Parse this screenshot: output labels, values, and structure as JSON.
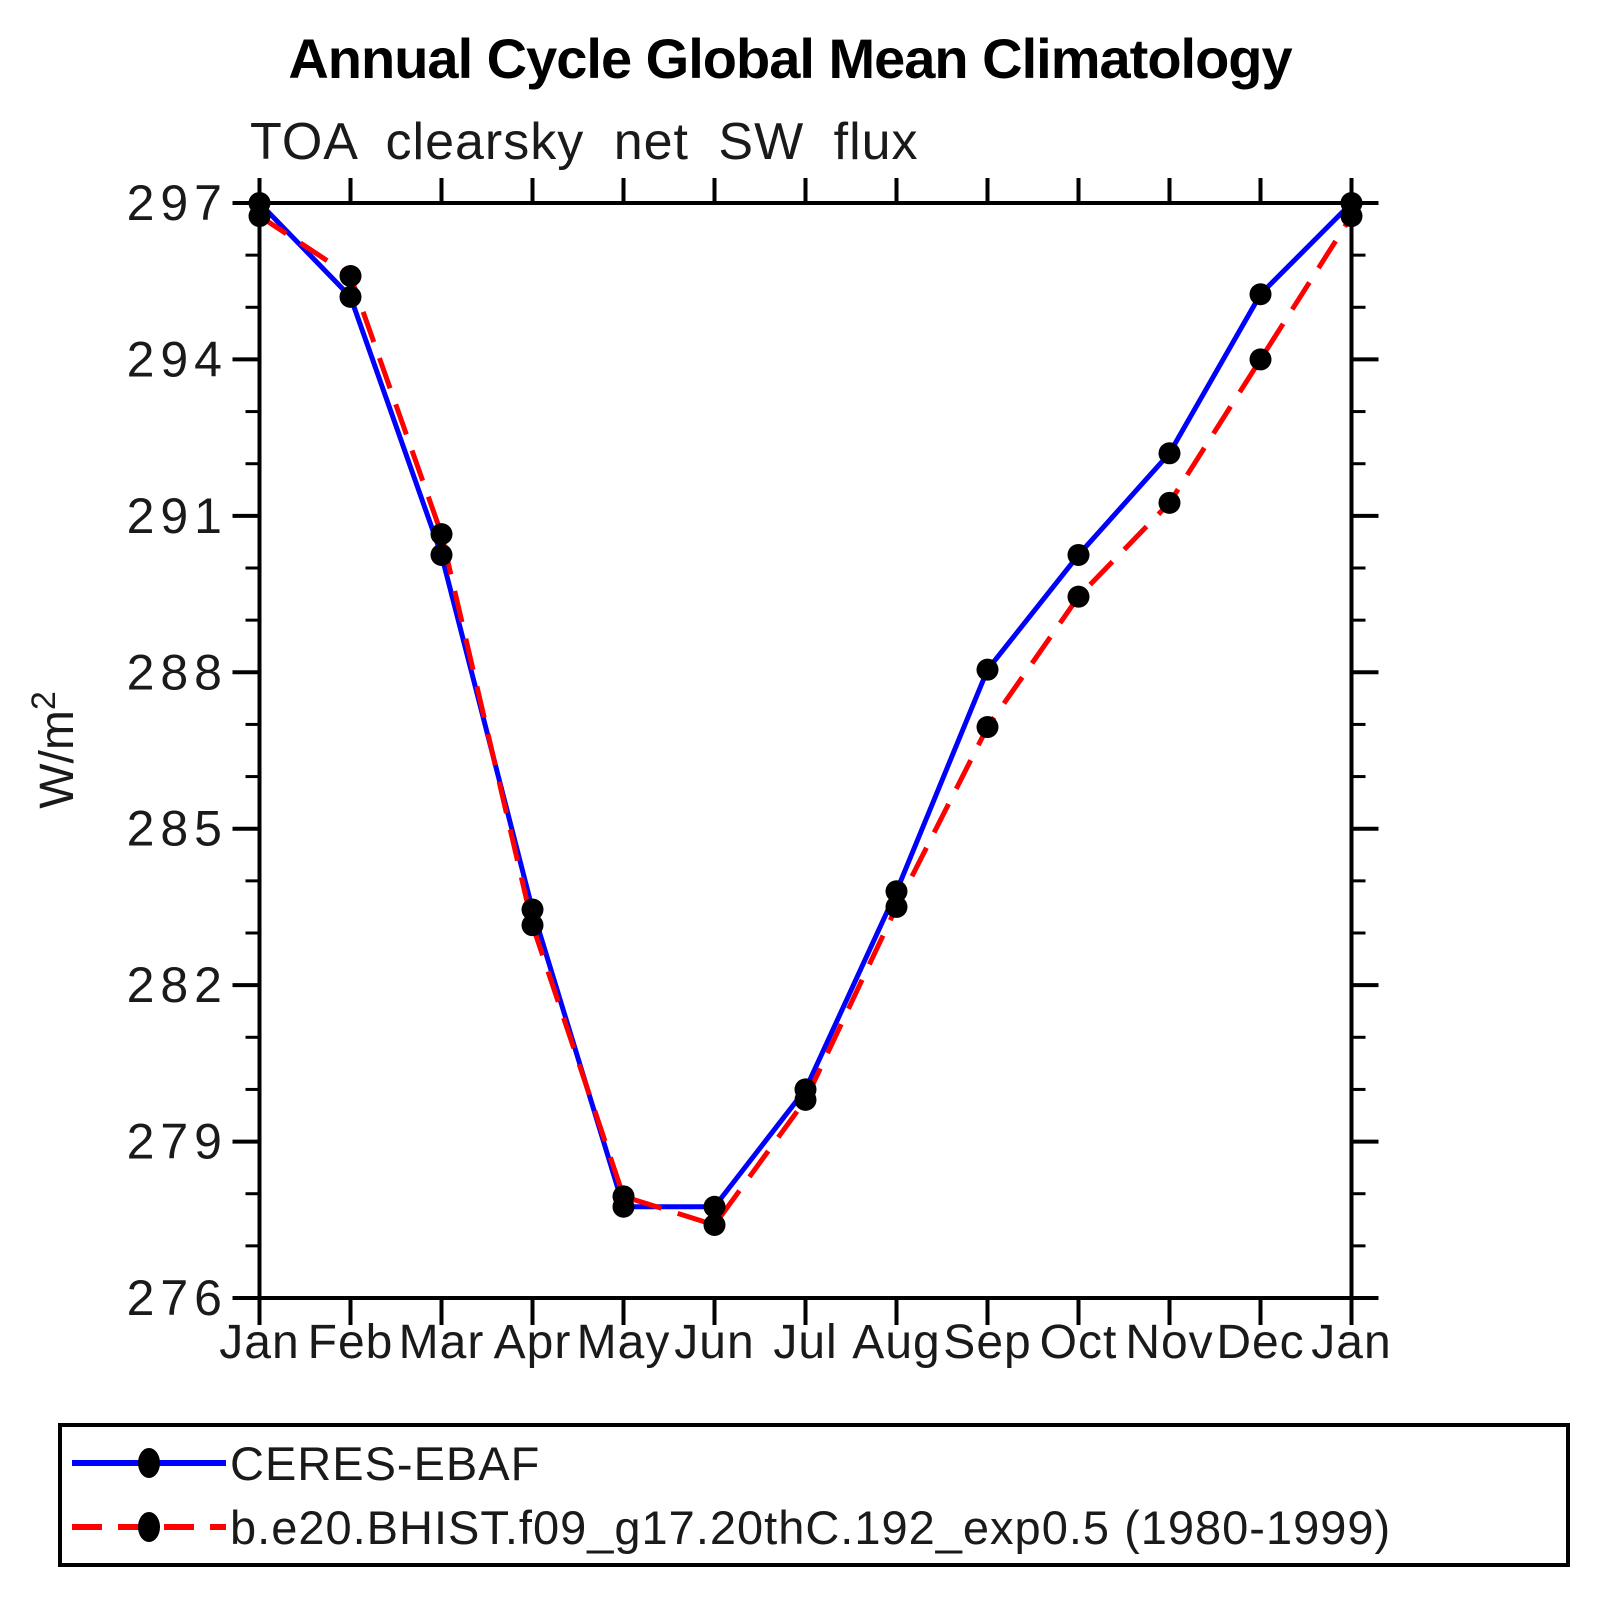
{
  "header": {
    "title": "Annual Cycle Global Mean Climatology",
    "subtitle": "TOA clearsky net SW flux"
  },
  "chart_data": {
    "type": "line",
    "title": "Annual Cycle Global Mean Climatology",
    "subtitle": "TOA clearsky net SW flux",
    "xlabel": "",
    "ylabel": "W/m²",
    "ylabel_base": "W/m",
    "ylabel_exponent": "2",
    "x_categories": [
      "Jan",
      "Feb",
      "Mar",
      "Apr",
      "May",
      "Jun",
      "Jul",
      "Aug",
      "Sep",
      "Oct",
      "Nov",
      "Dec",
      "Jan"
    ],
    "ylim": [
      276,
      297
    ],
    "ytick_major": [
      276,
      279,
      282,
      285,
      288,
      291,
      294,
      297
    ],
    "ytick_minor_step": 1,
    "grid": false,
    "legend_position": "bottom-left-box",
    "axis_color": "#000000",
    "series": [
      {
        "name": "CERES-EBAF",
        "color": "#0000ff",
        "line_style": "solid",
        "marker": "filled-circle",
        "marker_color": "#000000",
        "values": [
          297.0,
          295.2,
          290.25,
          283.45,
          277.75,
          277.75,
          280.0,
          283.8,
          288.05,
          290.25,
          292.2,
          295.25,
          297.0
        ]
      },
      {
        "name": "b.e20.BHIST.f09_g17.20thC.192_exp0.5 (1980-1999)",
        "color": "#ff0000",
        "line_style": "dashed",
        "marker": "filled-circle",
        "marker_color": "#000000",
        "values": [
          296.75,
          295.6,
          290.65,
          283.15,
          277.95,
          277.4,
          279.8,
          283.5,
          286.95,
          289.45,
          291.25,
          294.0,
          296.75
        ]
      }
    ]
  }
}
